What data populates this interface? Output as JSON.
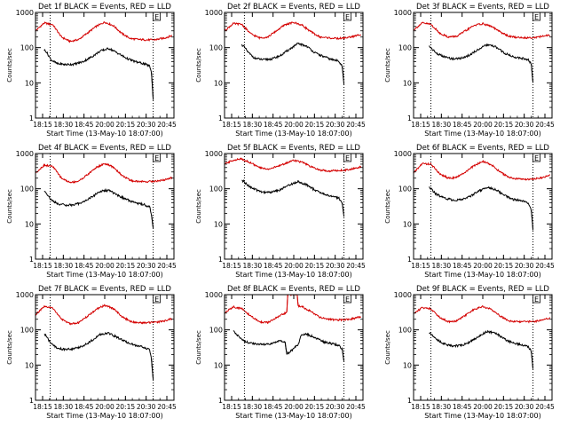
{
  "figure": {
    "common": {
      "xlabel": "Start Time (13-May-10 18:07:00)",
      "ylabel": "Counts/sec",
      "x_tick_labels": [
        "18:15",
        "18:30",
        "18:45",
        "20:00",
        "20:15",
        "20:30",
        "20:45"
      ],
      "y_tick_labels": [
        "1",
        "10",
        "100",
        "1000"
      ],
      "flag_text": "E"
    }
  },
  "colors": {
    "events": "#000000",
    "lld": "#d40000",
    "axes": "#000000",
    "background": "#ffffff"
  },
  "chart_data": [
    {
      "type": "line",
      "title": "Det 1f BLACK = Events, RED = LLD",
      "xlabel": "Start Time (13-May-10 18:07:00)",
      "ylabel": "Counts/sec",
      "x_range_minutes": [
        0,
        160
      ],
      "ylim": [
        1,
        1000
      ],
      "yscale": "log",
      "grid": false,
      "markers_minutes": [
        17,
        136
      ],
      "series": [
        {
          "name": "LLD",
          "x": [
            0,
            10,
            20,
            30,
            40,
            50,
            60,
            70,
            80,
            90,
            100,
            110,
            120,
            130,
            140,
            150,
            158
          ],
          "y": [
            300,
            500,
            450,
            200,
            150,
            170,
            260,
            400,
            530,
            420,
            250,
            180,
            170,
            165,
            170,
            190,
            220
          ]
        },
        {
          "name": "Events",
          "x": [
            10,
            12,
            18,
            25,
            35,
            45,
            55,
            65,
            75,
            85,
            95,
            105,
            115,
            125,
            132,
            134,
            136
          ],
          "y": [
            85,
            80,
            45,
            35,
            33,
            34,
            40,
            55,
            80,
            95,
            70,
            50,
            40,
            35,
            30,
            20,
            3.5
          ]
        }
      ]
    },
    {
      "type": "line",
      "title": "Det 2f BLACK = Events, RED = LLD",
      "xlabel": "Start Time (13-May-10 18:07:00)",
      "ylabel": "Counts/sec",
      "x_range_minutes": [
        0,
        160
      ],
      "ylim": [
        1,
        1000
      ],
      "yscale": "log",
      "grid": false,
      "markers_minutes": [
        23,
        138
      ],
      "series": [
        {
          "name": "LLD",
          "x": [
            0,
            10,
            20,
            30,
            40,
            50,
            60,
            70,
            80,
            90,
            100,
            110,
            120,
            130,
            140,
            150,
            158
          ],
          "y": [
            300,
            480,
            460,
            250,
            190,
            200,
            300,
            450,
            520,
            430,
            280,
            200,
            190,
            180,
            190,
            210,
            240
          ]
        },
        {
          "name": "Events",
          "x": [
            20,
            22,
            28,
            35,
            45,
            55,
            65,
            75,
            85,
            95,
            105,
            115,
            125,
            132,
            136,
            138
          ],
          "y": [
            120,
            110,
            70,
            50,
            45,
            48,
            60,
            90,
            130,
            110,
            70,
            55,
            45,
            42,
            30,
            9
          ]
        }
      ]
    },
    {
      "type": "line",
      "title": "Det 3f BLACK = Events, RED = LLD",
      "xlabel": "Start Time (13-May-10 18:07:00)",
      "ylabel": "Counts/sec",
      "x_range_minutes": [
        0,
        160
      ],
      "ylim": [
        1,
        1000
      ],
      "yscale": "log",
      "grid": false,
      "markers_minutes": [
        20,
        138
      ],
      "series": [
        {
          "name": "LLD",
          "x": [
            0,
            10,
            20,
            30,
            40,
            50,
            60,
            70,
            80,
            90,
            100,
            110,
            120,
            130,
            140,
            150,
            158
          ],
          "y": [
            320,
            500,
            460,
            260,
            200,
            210,
            300,
            430,
            480,
            400,
            280,
            210,
            195,
            190,
            195,
            210,
            230
          ]
        },
        {
          "name": "Events",
          "x": [
            18,
            20,
            26,
            35,
            45,
            55,
            65,
            75,
            85,
            95,
            105,
            115,
            125,
            132,
            136,
            138
          ],
          "y": [
            110,
            100,
            70,
            55,
            48,
            50,
            62,
            90,
            120,
            105,
            70,
            55,
            50,
            46,
            35,
            10
          ]
        }
      ]
    },
    {
      "type": "line",
      "title": "Det 4f BLACK = Events, RED = LLD",
      "xlabel": "Start Time (13-May-10 18:07:00)",
      "ylabel": "Counts/sec",
      "x_range_minutes": [
        0,
        160
      ],
      "ylim": [
        1,
        1000
      ],
      "yscale": "log",
      "grid": false,
      "markers_minutes": [
        17,
        136
      ],
      "series": [
        {
          "name": "LLD",
          "x": [
            0,
            10,
            20,
            30,
            40,
            50,
            60,
            70,
            80,
            90,
            100,
            110,
            120,
            130,
            140,
            150,
            158
          ],
          "y": [
            280,
            470,
            430,
            200,
            150,
            165,
            250,
            400,
            520,
            410,
            240,
            170,
            160,
            160,
            165,
            180,
            210
          ]
        },
        {
          "name": "Events",
          "x": [
            10,
            12,
            18,
            25,
            35,
            45,
            55,
            65,
            75,
            85,
            95,
            105,
            115,
            125,
            132,
            134,
            136
          ],
          "y": [
            85,
            80,
            48,
            38,
            34,
            35,
            42,
            58,
            85,
            90,
            65,
            50,
            40,
            36,
            30,
            18,
            8
          ]
        }
      ]
    },
    {
      "type": "line",
      "title": "Det 5f BLACK = Events, RED = LLD",
      "xlabel": "Start Time (13-May-10 18:07:00)",
      "ylabel": "Counts/sec",
      "x_range_minutes": [
        0,
        160
      ],
      "ylim": [
        1,
        1000
      ],
      "yscale": "log",
      "grid": false,
      "markers_minutes": [
        23,
        138
      ],
      "series": [
        {
          "name": "LLD",
          "x": [
            0,
            10,
            20,
            30,
            40,
            50,
            60,
            70,
            80,
            90,
            100,
            110,
            120,
            130,
            140,
            150,
            158
          ],
          "y": [
            500,
            650,
            700,
            550,
            400,
            360,
            420,
            520,
            650,
            560,
            420,
            340,
            320,
            330,
            340,
            380,
            420
          ]
        },
        {
          "name": "Events",
          "x": [
            20,
            22,
            28,
            35,
            45,
            55,
            65,
            75,
            85,
            95,
            105,
            115,
            125,
            132,
            136,
            138
          ],
          "y": [
            170,
            160,
            120,
            95,
            80,
            80,
            95,
            130,
            160,
            130,
            90,
            70,
            60,
            55,
            40,
            16
          ]
        }
      ]
    },
    {
      "type": "line",
      "title": "Det 6f BLACK = Events, RED = LLD",
      "xlabel": "Start Time (13-May-10 18:07:00)",
      "ylabel": "Counts/sec",
      "x_range_minutes": [
        0,
        160
      ],
      "ylim": [
        1,
        1000
      ],
      "yscale": "log",
      "grid": false,
      "markers_minutes": [
        20,
        138
      ],
      "series": [
        {
          "name": "LLD",
          "x": [
            0,
            10,
            20,
            30,
            40,
            50,
            60,
            70,
            80,
            90,
            100,
            110,
            120,
            130,
            140,
            150,
            158
          ],
          "y": [
            280,
            520,
            500,
            270,
            200,
            210,
            300,
            450,
            600,
            480,
            300,
            210,
            190,
            185,
            190,
            210,
            240
          ]
        },
        {
          "name": "Events",
          "x": [
            18,
            20,
            26,
            35,
            45,
            55,
            65,
            75,
            85,
            95,
            105,
            115,
            125,
            132,
            136,
            138
          ],
          "y": [
            110,
            100,
            70,
            55,
            48,
            48,
            60,
            85,
            110,
            95,
            65,
            50,
            45,
            40,
            25,
            7
          ]
        }
      ]
    },
    {
      "type": "line",
      "title": "Det 7f BLACK = Events, RED = LLD",
      "xlabel": "Start Time (13-May-10 18:07:00)",
      "ylabel": "Counts/sec",
      "x_range_minutes": [
        0,
        160
      ],
      "ylim": [
        1,
        1000
      ],
      "yscale": "log",
      "grid": false,
      "markers_minutes": [
        17,
        136
      ],
      "series": [
        {
          "name": "LLD",
          "x": [
            0,
            10,
            20,
            30,
            40,
            50,
            60,
            70,
            80,
            90,
            100,
            110,
            120,
            130,
            140,
            150,
            158
          ],
          "y": [
            270,
            450,
            420,
            200,
            150,
            160,
            240,
            380,
            500,
            400,
            240,
            170,
            160,
            160,
            165,
            180,
            210
          ]
        },
        {
          "name": "Events",
          "x": [
            10,
            12,
            18,
            25,
            35,
            45,
            55,
            65,
            75,
            85,
            95,
            105,
            115,
            125,
            132,
            134,
            136
          ],
          "y": [
            75,
            70,
            40,
            30,
            28,
            29,
            35,
            50,
            75,
            80,
            60,
            45,
            36,
            32,
            27,
            15,
            4
          ]
        }
      ]
    },
    {
      "type": "line",
      "title": "Det 8f BLACK = Events, RED = LLD",
      "xlabel": "Start Time (13-May-10 18:07:00)",
      "ylabel": "Counts/sec",
      "x_range_minutes": [
        0,
        160
      ],
      "ylim": [
        1,
        1000
      ],
      "yscale": "log",
      "grid": false,
      "markers_minutes": [
        23,
        138
      ],
      "series": [
        {
          "name": "LLD",
          "x": [
            0,
            10,
            20,
            30,
            40,
            50,
            60,
            70,
            72,
            73,
            84,
            85,
            90,
            100,
            110,
            120,
            130,
            140,
            150,
            158
          ],
          "y": [
            300,
            450,
            400,
            250,
            170,
            160,
            220,
            300,
            320,
            1000,
            1000,
            480,
            450,
            330,
            230,
            200,
            190,
            195,
            210,
            240
          ]
        },
        {
          "name": "Events",
          "x": [
            10,
            12,
            18,
            25,
            35,
            45,
            55,
            65,
            70,
            72,
            86,
            88,
            95,
            105,
            115,
            125,
            132,
            136,
            138
          ],
          "y": [
            90,
            85,
            60,
            45,
            40,
            38,
            40,
            50,
            45,
            20,
            40,
            70,
            75,
            60,
            45,
            40,
            36,
            28,
            13
          ]
        }
      ]
    },
    {
      "type": "line",
      "title": "Det 9f BLACK = Events, RED = LLD",
      "xlabel": "Start Time (13-May-10 18:07:00)",
      "ylabel": "Counts/sec",
      "x_range_minutes": [
        0,
        160
      ],
      "ylim": [
        1,
        1000
      ],
      "yscale": "log",
      "grid": false,
      "markers_minutes": [
        20,
        138
      ],
      "series": [
        {
          "name": "LLD",
          "x": [
            0,
            10,
            20,
            30,
            40,
            50,
            60,
            70,
            80,
            90,
            100,
            110,
            120,
            130,
            140,
            150,
            158
          ],
          "y": [
            290,
            430,
            400,
            230,
            170,
            180,
            260,
            380,
            460,
            380,
            250,
            180,
            170,
            170,
            175,
            190,
            220
          ]
        },
        {
          "name": "Events",
          "x": [
            18,
            20,
            26,
            35,
            45,
            55,
            65,
            75,
            85,
            95,
            105,
            115,
            125,
            132,
            136,
            138
          ],
          "y": [
            85,
            80,
            55,
            40,
            35,
            36,
            45,
            65,
            90,
            80,
            55,
            42,
            38,
            34,
            25,
            8
          ]
        }
      ]
    }
  ]
}
